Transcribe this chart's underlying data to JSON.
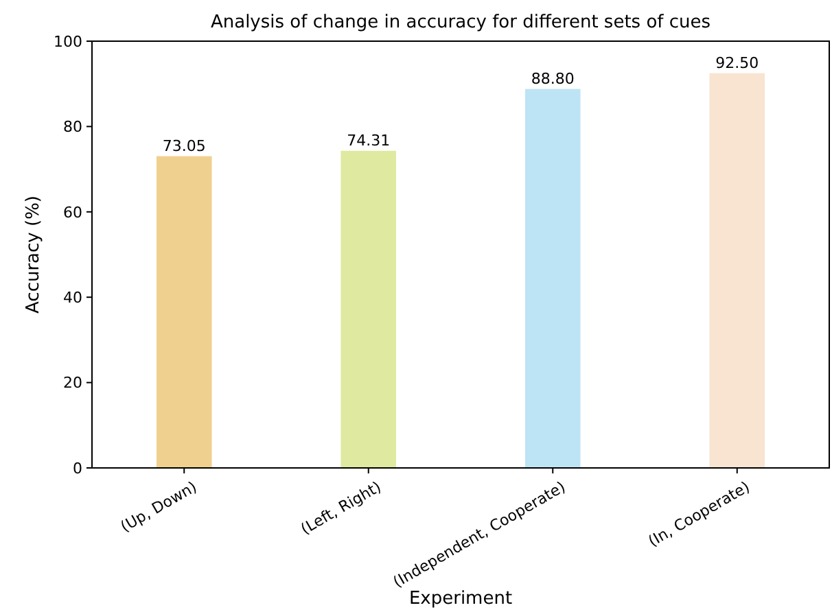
{
  "chart_data": {
    "type": "bar",
    "title": "Analysis of change in accuracy for different sets of cues",
    "xlabel": "Experiment",
    "ylabel": "Accuracy (%)",
    "categories": [
      "(Up, Down)",
      "(Left, Right)",
      "(Independent, Cooperate)",
      "(In, Cooperate)"
    ],
    "values": [
      73.05,
      74.31,
      88.8,
      92.5
    ],
    "colors": [
      "#f0d08f",
      "#dfe9a0",
      "#bde4f4",
      "#f8e4d0"
    ],
    "value_labels": [
      "73.05",
      "74.31",
      "88.80",
      "92.50"
    ],
    "ylim": [
      0,
      100
    ],
    "yticks": [
      0,
      20,
      40,
      60,
      80,
      100
    ],
    "grid": false
  }
}
